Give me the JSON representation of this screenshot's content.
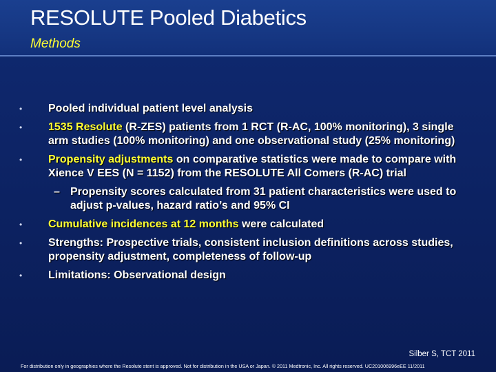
{
  "header": {
    "title": "RESOLUTE Pooled Diabetics",
    "subtitle": "Methods"
  },
  "colors": {
    "background": "#0d2466",
    "header": "#163783",
    "accent_yellow": "#ffff33",
    "text": "#ffffff"
  },
  "bullets": {
    "b1": "Pooled individual patient level analysis",
    "b2_hl": "1535 Resolute",
    "b2_rest": " (R-ZES) patients from 1 RCT (R-AC, 100% monitoring), 3 single arm studies (100% monitoring) and one observational study (25% monitoring)",
    "b3_hl": "Propensity adjustments",
    "b3_rest": " on comparative statistics were made to compare with Xience V EES (N = 1152) from the RESOLUTE All Comers (R-AC) trial",
    "b3_sub": "Propensity scores calculated from 31 patient characteristics were used to adjust p-values, hazard ratio’s and 95% CI",
    "b4_hl": "Cumulative incidences at 12 months",
    "b4_rest": " were calculated",
    "b5": "Strengths: Prospective trials, consistent inclusion definitions across studies, propensity adjustment, completeness of  follow-up",
    "b6": "Limitations: Observational design"
  },
  "symbols": {
    "bullet": "•",
    "dash": "–"
  },
  "citation": "Silber S, TCT 2011",
  "footer": "For distribution only in geographies where the Resolute stent is approved. Not for distribution in the USA or Japan. © 2011 Medtronic, Inc. All rights reserved. UC201006996eEE 11/2011"
}
